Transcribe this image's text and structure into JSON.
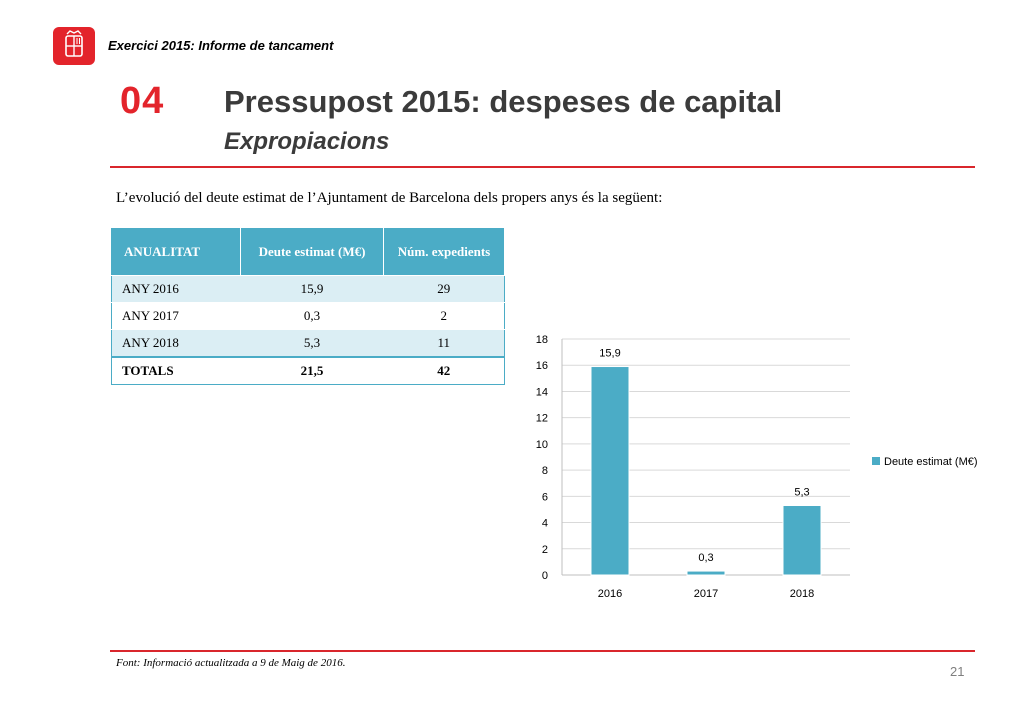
{
  "header": {
    "title": "Exercici 2015: Informe de tancament",
    "brand_color": "#e3242b"
  },
  "section": {
    "number": "04",
    "title": "Pressupost 2015: despeses de capital",
    "subtitle": "Expropiacions"
  },
  "intro_text": "L’evolució del deute estimat de l’Ajuntament de Barcelona dels propers anys és la següent:",
  "table": {
    "headers": [
      "ANUALITAT",
      "Deute estimat (M€)",
      "Núm. expedients"
    ],
    "rows": [
      [
        "ANY 2016",
        "15,9",
        "29"
      ],
      [
        "ANY 2017",
        "0,3",
        "2"
      ],
      [
        "ANY 2018",
        "5,3",
        "11"
      ]
    ],
    "total": [
      "TOTALS",
      "21,5",
      "42"
    ],
    "header_color": "#4bacc6",
    "band_color": "#dbeef4"
  },
  "chart_data": {
    "type": "bar",
    "categories": [
      "2016",
      "2017",
      "2018"
    ],
    "series": [
      {
        "name": "Deute estimat (M€)",
        "values": [
          15.9,
          0.3,
          5.3
        ],
        "labels": [
          "15,9",
          "0,3",
          "5,3"
        ],
        "color": "#4bacc6"
      }
    ],
    "ylim": [
      0,
      18
    ],
    "yticks": [
      0,
      2,
      4,
      6,
      8,
      10,
      12,
      14,
      16,
      18
    ],
    "grid": true,
    "legend": "right"
  },
  "footer": {
    "source": "Font:  Informació actualitzada a 9 de Maig de 2016.",
    "page": "21"
  }
}
